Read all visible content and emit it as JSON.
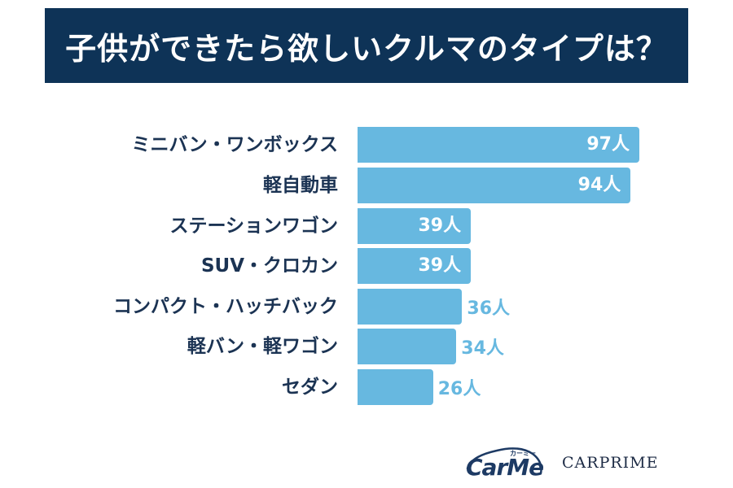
{
  "title": "子供ができたら欲しいクルマのタイプは？",
  "unit": "人",
  "colors": {
    "title_bg": "#0e3357",
    "title_text": "#ffffff",
    "bar": "#67b8e0",
    "label_text": "#1b3353",
    "value_inside": "#ffffff",
    "value_outside": "#67b8e0"
  },
  "rows": [
    {
      "label": "ミニバン・ワンボックス",
      "value": 97,
      "value_text": "97人",
      "label_position": "inside"
    },
    {
      "label": "軽自動車",
      "value": 94,
      "value_text": "94人",
      "label_position": "inside"
    },
    {
      "label": "ステーションワゴン",
      "value": 39,
      "value_text": "39人",
      "label_position": "inside"
    },
    {
      "label": "SUV・クロカン",
      "value": 39,
      "value_text": "39人",
      "label_position": "inside"
    },
    {
      "label": "コンパクト・ハッチバック",
      "value": 36,
      "value_text": "36人",
      "label_position": "outside"
    },
    {
      "label": "軽バン・軽ワゴン",
      "value": 34,
      "value_text": "34人",
      "label_position": "outside"
    },
    {
      "label": "セダン",
      "value": 26,
      "value_text": "26人",
      "label_position": "outside"
    }
  ],
  "logos": {
    "carme": {
      "word": "CarMe",
      "kana": "カーミー"
    },
    "carprime": "CARPRIME"
  },
  "chart_data": {
    "type": "bar",
    "orientation": "horizontal",
    "title": "子供ができたら欲しいクルマのタイプは？",
    "categories": [
      "ミニバン・ワンボックス",
      "軽自動車",
      "ステーションワゴン",
      "SUV・クロカン",
      "コンパクト・ハッチバック",
      "軽バン・軽ワゴン",
      "セダン"
    ],
    "values": [
      97,
      94,
      39,
      39,
      36,
      34,
      26
    ],
    "value_labels": [
      "97人",
      "94人",
      "39人",
      "39人",
      "36人",
      "34人",
      "26人"
    ],
    "xlabel": "",
    "ylabel": "",
    "unit": "人",
    "grid": false,
    "legend": null
  }
}
